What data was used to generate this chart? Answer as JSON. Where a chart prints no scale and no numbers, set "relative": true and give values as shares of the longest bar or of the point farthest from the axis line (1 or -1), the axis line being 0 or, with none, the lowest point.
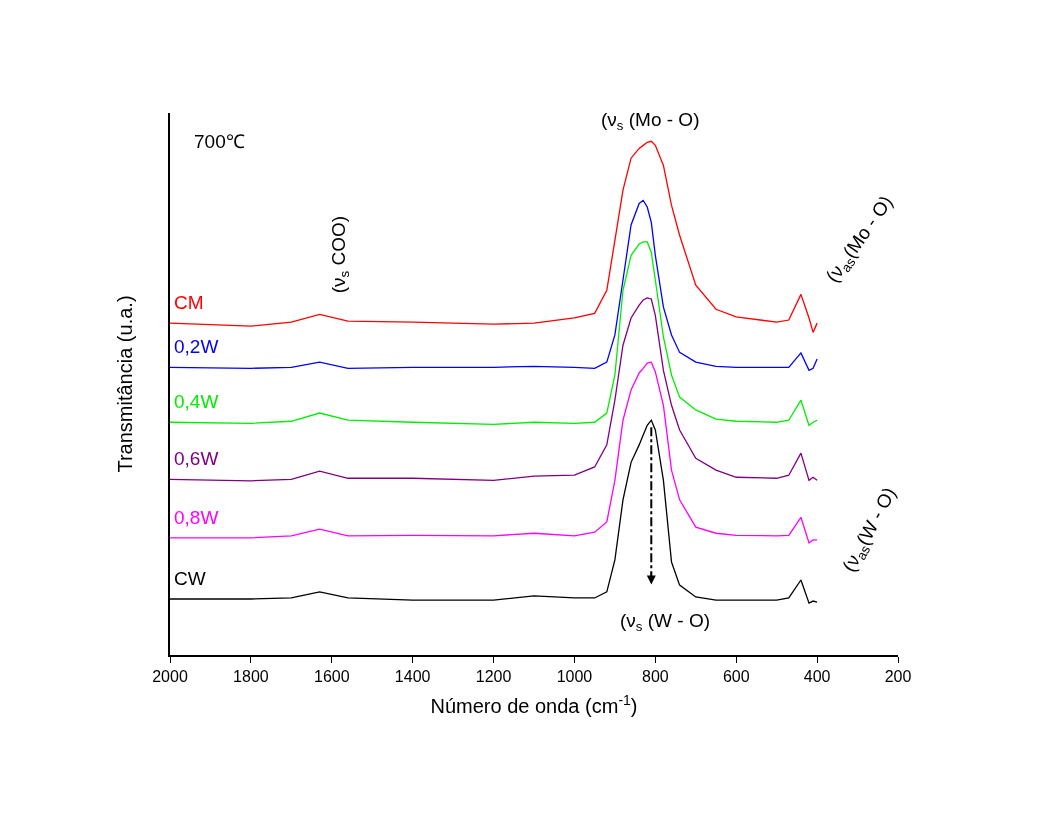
{
  "chart_data": {
    "type": "line",
    "relative": true,
    "xlabel": "Número de onda (cm$^{-1}$)",
    "ylabel": "Transmitância (u.a.)",
    "xlim": [
      2000,
      200
    ],
    "xticks": [
      2000,
      1800,
      1600,
      1400,
      1200,
      1000,
      800,
      600,
      400,
      200
    ],
    "x": [
      2000,
      1800,
      1700,
      1630,
      1560,
      1400,
      1200,
      1100,
      1000,
      950,
      920,
      900,
      880,
      860,
      840,
      830,
      820,
      810,
      800,
      780,
      760,
      740,
      700,
      650,
      600,
      500,
      470,
      440,
      420,
      410,
      400
    ],
    "series": [
      {
        "name": "CM",
        "color": "#ff0000",
        "values": [
          0.646,
          0.64,
          0.648,
          0.663,
          0.65,
          0.648,
          0.644,
          0.646,
          0.656,
          0.665,
          0.71,
          0.807,
          0.905,
          0.967,
          0.986,
          0.992,
          0.998,
          1,
          0.992,
          0.953,
          0.875,
          0.817,
          0.72,
          0.673,
          0.658,
          0.648,
          0.652,
          0.702,
          0.656,
          0.628,
          0.646
        ]
      },
      {
        "name": "0,2W",
        "color": "#0000ff",
        "values": [
          0.56,
          0.558,
          0.56,
          0.57,
          0.558,
          0.56,
          0.56,
          0.562,
          0.56,
          0.558,
          0.57,
          0.623,
          0.73,
          0.837,
          0.879,
          0.885,
          0.872,
          0.842,
          0.778,
          0.677,
          0.623,
          0.589,
          0.57,
          0.562,
          0.56,
          0.56,
          0.56,
          0.588,
          0.554,
          0.558,
          0.576
        ]
      },
      {
        "name": "0,4W",
        "color": "#00ee00",
        "values": [
          0.453,
          0.451,
          0.455,
          0.471,
          0.457,
          0.453,
          0.449,
          0.453,
          0.451,
          0.453,
          0.471,
          0.545,
          0.71,
          0.778,
          0.8,
          0.804,
          0.804,
          0.784,
          0.73,
          0.619,
          0.545,
          0.502,
          0.477,
          0.459,
          0.455,
          0.453,
          0.457,
          0.496,
          0.447,
          0.453,
          0.457
        ]
      },
      {
        "name": "0,6W",
        "color": "#800080",
        "values": [
          0.342,
          0.339,
          0.342,
          0.358,
          0.344,
          0.344,
          0.34,
          0.348,
          0.35,
          0.366,
          0.409,
          0.496,
          0.603,
          0.656,
          0.681,
          0.691,
          0.695,
          0.693,
          0.661,
          0.554,
          0.486,
          0.438,
          0.383,
          0.36,
          0.346,
          0.344,
          0.35,
          0.393,
          0.34,
          0.346,
          0.34
        ]
      },
      {
        "name": "0,8W",
        "color": "#ff00ff",
        "values": [
          0.228,
          0.228,
          0.232,
          0.245,
          0.232,
          0.233,
          0.232,
          0.237,
          0.232,
          0.239,
          0.259,
          0.34,
          0.457,
          0.516,
          0.549,
          0.558,
          0.568,
          0.57,
          0.551,
          0.486,
          0.36,
          0.302,
          0.249,
          0.237,
          0.233,
          0.232,
          0.233,
          0.268,
          0.218,
          0.224,
          0.224
        ]
      },
      {
        "name": "CW",
        "color": "#000000",
        "values": [
          0.109,
          0.109,
          0.111,
          0.123,
          0.111,
          0.107,
          0.107,
          0.115,
          0.111,
          0.111,
          0.123,
          0.185,
          0.302,
          0.375,
          0.409,
          0.428,
          0.447,
          0.457,
          0.438,
          0.34,
          0.181,
          0.136,
          0.113,
          0.107,
          0.107,
          0.107,
          0.111,
          0.146,
          0.101,
          0.105,
          0.103
        ]
      }
    ],
    "annotations": [
      "700℃",
      "(ν$_{s}$ COO)",
      "(ν$_{s}$ (Mo - O)",
      "(ν$_{as}$(Mo - O)",
      "(ν$_{as}$(W - O)",
      "(ν$_{s}$ (W - O)"
    ],
    "legend": false,
    "marker": "none",
    "line_style": "solid"
  }
}
